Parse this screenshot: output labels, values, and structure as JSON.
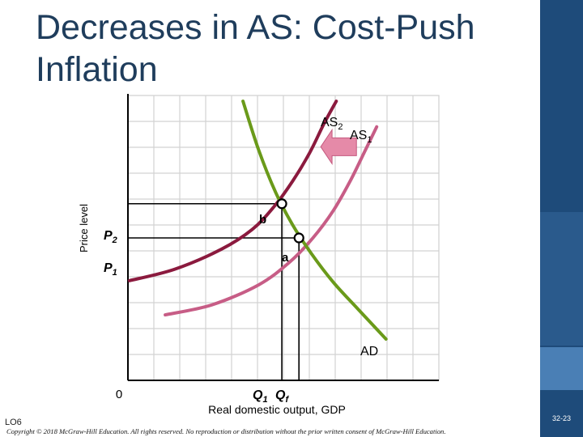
{
  "title": "Decreases in AS: Cost-Push Inflation",
  "footer": {
    "lo": "LO6",
    "copyright": "Copyright © 2018 McGraw-Hill Education. All rights reserved. No reproduction or distribution without the prior written consent of McGraw-Hill Education.",
    "page": "32-23"
  },
  "colors": {
    "as1": "#c75d86",
    "as2": "#8b1a3e",
    "ad": "#6a9a1a",
    "arrow": "#e58aa8",
    "sidebar": "#1e4b7a",
    "title": "#1f3d5c"
  },
  "chart_data": {
    "type": "line",
    "title": "",
    "ylabel": "Price level",
    "xlabel": "Real domestic output, GDP",
    "xlim": [
      0,
      10
    ],
    "ylim": [
      0,
      10
    ],
    "grid": true,
    "series": [
      {
        "name": "AS2",
        "label_main": "AS",
        "label_sub": "2",
        "color": "#8b1a3e",
        "x": [
          0.05,
          1.5,
          3.0,
          4.0,
          4.7,
          5.3,
          5.85,
          6.3,
          6.7
        ],
        "y": [
          3.5,
          3.9,
          4.6,
          5.3,
          6.1,
          7.0,
          8.0,
          9.0,
          9.8
        ]
      },
      {
        "name": "AS1",
        "label_main": "AS",
        "label_sub": "1",
        "color": "#c75d86",
        "x": [
          1.2,
          2.7,
          4.2,
          5.2,
          5.95,
          6.6,
          7.15,
          7.6,
          8.0
        ],
        "y": [
          2.3,
          2.65,
          3.35,
          4.15,
          5.0,
          5.95,
          7.0,
          8.0,
          8.9
        ]
      },
      {
        "name": "AD",
        "label_main": "AD",
        "label_sub": "",
        "color": "#6a9a1a",
        "x": [
          3.7,
          4.2,
          4.75,
          5.3,
          5.9,
          6.6,
          7.4,
          8.3
        ],
        "y": [
          9.8,
          8.1,
          6.6,
          5.45,
          4.45,
          3.45,
          2.5,
          1.45
        ]
      }
    ],
    "points": [
      {
        "name": "b",
        "x": 4.95,
        "y": 6.2
      },
      {
        "name": "a",
        "x": 5.5,
        "y": 5.0
      }
    ],
    "y_tick_labels": [
      {
        "main": "P",
        "sub": "2",
        "y": 6.2
      },
      {
        "main": "P",
        "sub": "1",
        "y": 5.0
      }
    ],
    "x_tick_labels": [
      {
        "main": "Q",
        "sub": "1",
        "x": 4.95
      },
      {
        "main": "Q",
        "sub": "f",
        "x": 5.5
      }
    ],
    "origin_label": "0",
    "shift_arrow": {
      "direction": "left",
      "from": [
        7.35,
        8.2
      ],
      "to": [
        6.2,
        8.2
      ]
    }
  }
}
